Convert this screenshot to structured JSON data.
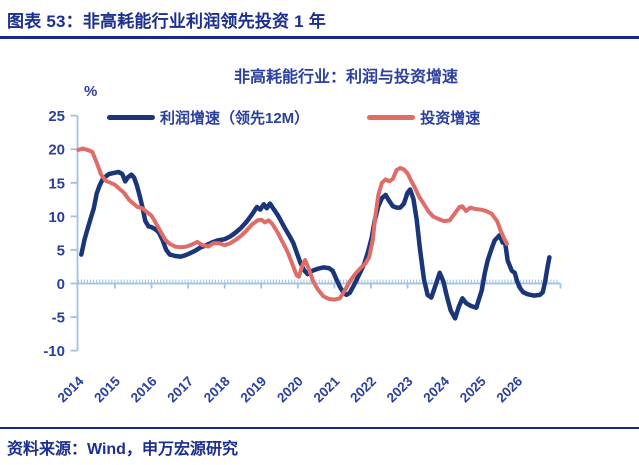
{
  "header": {
    "title": "图表 53：非高耗能行业利润领先投资 1 年"
  },
  "footer": {
    "source": "资料来源：Wind，申万宏源研究"
  },
  "colors": {
    "header_navy": "#1b2f8e",
    "chart_text_blue": "#2b3f9e",
    "axis_light_blue": "#9dc3e6",
    "profit_line": "#1a3578",
    "investment_line": "#e06c68"
  },
  "chart_data": {
    "type": "line",
    "title": "非高耗能行业：利润与投资增速",
    "unit_label": "%",
    "ylim": [
      -10,
      25
    ],
    "yticks": [
      25,
      20,
      15,
      10,
      5,
      0,
      -5,
      -10
    ],
    "xticks": [
      2014,
      2015,
      2016,
      2017,
      2018,
      2019,
      2020,
      2021,
      2022,
      2023,
      2024,
      2025,
      2026
    ],
    "x_range": [
      2014,
      2027.2
    ],
    "grid": "off",
    "legend_position": "top",
    "axis_crosses_at": 0,
    "series": [
      {
        "key": "profit-growth-lead-12m",
        "name": "利润增速（领先12M）",
        "color": "#1a3578",
        "width": 4.5,
        "points": [
          [
            2014.08,
            4.3
          ],
          [
            2014.17,
            6.6
          ],
          [
            2014.25,
            8.1
          ],
          [
            2014.33,
            9.6
          ],
          [
            2014.42,
            11.2
          ],
          [
            2014.5,
            13.4
          ],
          [
            2014.58,
            14.6
          ],
          [
            2014.67,
            15.6
          ],
          [
            2014.83,
            16.3
          ],
          [
            2015.0,
            16.5
          ],
          [
            2015.1,
            16.6
          ],
          [
            2015.2,
            16.3
          ],
          [
            2015.28,
            15.2
          ],
          [
            2015.35,
            15.8
          ],
          [
            2015.45,
            16.2
          ],
          [
            2015.52,
            15.8
          ],
          [
            2015.6,
            14.6
          ],
          [
            2015.68,
            13.0
          ],
          [
            2015.75,
            11.4
          ],
          [
            2015.83,
            9.3
          ],
          [
            2015.92,
            8.5
          ],
          [
            2016.0,
            8.4
          ],
          [
            2016.1,
            8.1
          ],
          [
            2016.2,
            7.6
          ],
          [
            2016.3,
            6.5
          ],
          [
            2016.4,
            5.0
          ],
          [
            2016.5,
            4.3
          ],
          [
            2016.65,
            4.1
          ],
          [
            2016.8,
            4.0
          ],
          [
            2016.92,
            4.2
          ],
          [
            2017.05,
            4.5
          ],
          [
            2017.2,
            4.9
          ],
          [
            2017.35,
            5.4
          ],
          [
            2017.5,
            5.7
          ],
          [
            2017.65,
            6.1
          ],
          [
            2017.8,
            6.4
          ],
          [
            2018.0,
            6.6
          ],
          [
            2018.15,
            7.0
          ],
          [
            2018.3,
            7.6
          ],
          [
            2018.45,
            8.3
          ],
          [
            2018.6,
            9.2
          ],
          [
            2018.75,
            10.3
          ],
          [
            2018.88,
            11.4
          ],
          [
            2018.97,
            11.0
          ],
          [
            2019.07,
            11.8
          ],
          [
            2019.15,
            11.2
          ],
          [
            2019.24,
            11.9
          ],
          [
            2019.35,
            11.0
          ],
          [
            2019.45,
            10.2
          ],
          [
            2019.55,
            9.2
          ],
          [
            2019.65,
            8.2
          ],
          [
            2019.78,
            7.0
          ],
          [
            2019.88,
            6.0
          ],
          [
            2019.97,
            4.6
          ],
          [
            2020.07,
            3.1
          ],
          [
            2020.17,
            2.0
          ],
          [
            2020.27,
            1.4
          ],
          [
            2020.4,
            1.9
          ],
          [
            2020.55,
            2.2
          ],
          [
            2020.7,
            2.4
          ],
          [
            2020.85,
            2.3
          ],
          [
            2020.95,
            1.9
          ],
          [
            2021.05,
            0.7
          ],
          [
            2021.15,
            -0.5
          ],
          [
            2021.25,
            -1.4
          ],
          [
            2021.33,
            -1.7
          ],
          [
            2021.42,
            -1.4
          ],
          [
            2021.52,
            -0.4
          ],
          [
            2021.62,
            0.7
          ],
          [
            2021.72,
            1.8
          ],
          [
            2021.82,
            3.0
          ],
          [
            2021.92,
            4.7
          ],
          [
            2022.02,
            6.8
          ],
          [
            2022.1,
            9.3
          ],
          [
            2022.2,
            11.5
          ],
          [
            2022.3,
            12.7
          ],
          [
            2022.4,
            13.2
          ],
          [
            2022.5,
            12.3
          ],
          [
            2022.6,
            11.5
          ],
          [
            2022.7,
            11.3
          ],
          [
            2022.8,
            11.3
          ],
          [
            2022.9,
            11.9
          ],
          [
            2023.0,
            13.5
          ],
          [
            2023.07,
            14.0
          ],
          [
            2023.16,
            12.6
          ],
          [
            2023.25,
            9.5
          ],
          [
            2023.34,
            5.1
          ],
          [
            2023.45,
            0.6
          ],
          [
            2023.55,
            -1.7
          ],
          [
            2023.65,
            -2.1
          ],
          [
            2023.75,
            -0.5
          ],
          [
            2023.88,
            1.6
          ],
          [
            2023.98,
            0.3
          ],
          [
            2024.08,
            -2.0
          ],
          [
            2024.18,
            -4.0
          ],
          [
            2024.3,
            -5.2
          ],
          [
            2024.4,
            -3.5
          ],
          [
            2024.5,
            -2.2
          ],
          [
            2024.6,
            -2.9
          ],
          [
            2024.72,
            -3.3
          ],
          [
            2024.88,
            -3.6
          ],
          [
            2025.03,
            -1.0
          ],
          [
            2025.11,
            1.5
          ],
          [
            2025.19,
            3.4
          ],
          [
            2025.3,
            5.2
          ],
          [
            2025.38,
            6.4
          ],
          [
            2025.52,
            7.2
          ],
          [
            2025.6,
            6.1
          ],
          [
            2025.66,
            6.4
          ],
          [
            2025.74,
            3.4
          ],
          [
            2025.85,
            1.9
          ],
          [
            2025.93,
            1.6
          ],
          [
            2026.0,
            0.3
          ],
          [
            2026.08,
            -0.7
          ],
          [
            2026.16,
            -1.3
          ],
          [
            2026.28,
            -1.6
          ],
          [
            2026.45,
            -1.8
          ],
          [
            2026.62,
            -1.7
          ],
          [
            2026.7,
            -1.3
          ],
          [
            2026.76,
            0.2
          ],
          [
            2026.83,
            2.5
          ],
          [
            2026.88,
            3.9
          ]
        ]
      },
      {
        "key": "investment-growth",
        "name": "投资增速",
        "color": "#e06c68",
        "width": 4,
        "points": [
          [
            2014.0,
            19.9
          ],
          [
            2014.12,
            20.1
          ],
          [
            2014.25,
            19.9
          ],
          [
            2014.38,
            19.6
          ],
          [
            2014.5,
            18.0
          ],
          [
            2014.62,
            16.2
          ],
          [
            2014.75,
            15.3
          ],
          [
            2014.88,
            15.0
          ],
          [
            2015.0,
            14.7
          ],
          [
            2015.12,
            14.1
          ],
          [
            2015.25,
            13.5
          ],
          [
            2015.38,
            12.5
          ],
          [
            2015.5,
            11.9
          ],
          [
            2015.62,
            11.4
          ],
          [
            2015.75,
            11.2
          ],
          [
            2015.88,
            10.6
          ],
          [
            2016.0,
            10.1
          ],
          [
            2016.12,
            9.0
          ],
          [
            2016.25,
            7.7
          ],
          [
            2016.38,
            6.5
          ],
          [
            2016.5,
            5.9
          ],
          [
            2016.65,
            5.5
          ],
          [
            2016.8,
            5.4
          ],
          [
            2016.95,
            5.5
          ],
          [
            2017.1,
            5.8
          ],
          [
            2017.25,
            6.2
          ],
          [
            2017.4,
            5.7
          ],
          [
            2017.55,
            5.5
          ],
          [
            2017.7,
            6.0
          ],
          [
            2017.85,
            6.0
          ],
          [
            2018.0,
            5.7
          ],
          [
            2018.15,
            6.0
          ],
          [
            2018.3,
            6.5
          ],
          [
            2018.45,
            7.1
          ],
          [
            2018.6,
            7.9
          ],
          [
            2018.75,
            8.8
          ],
          [
            2018.9,
            9.4
          ],
          [
            2019.0,
            9.5
          ],
          [
            2019.1,
            9.1
          ],
          [
            2019.2,
            9.4
          ],
          [
            2019.3,
            8.9
          ],
          [
            2019.45,
            7.6
          ],
          [
            2019.55,
            6.5
          ],
          [
            2019.65,
            5.5
          ],
          [
            2019.75,
            4.3
          ],
          [
            2019.85,
            2.9
          ],
          [
            2019.97,
            1.2
          ],
          [
            2020.03,
            1.0
          ],
          [
            2020.12,
            2.6
          ],
          [
            2020.2,
            3.5
          ],
          [
            2020.3,
            2.2
          ],
          [
            2020.42,
            0.3
          ],
          [
            2020.55,
            -0.9
          ],
          [
            2020.7,
            -1.9
          ],
          [
            2020.85,
            -2.3
          ],
          [
            2021.0,
            -2.4
          ],
          [
            2021.15,
            -2.2
          ],
          [
            2021.3,
            -0.9
          ],
          [
            2021.42,
            0.3
          ],
          [
            2021.55,
            1.3
          ],
          [
            2021.7,
            2.2
          ],
          [
            2021.85,
            3.0
          ],
          [
            2021.95,
            3.9
          ],
          [
            2022.05,
            6.5
          ],
          [
            2022.12,
            10.0
          ],
          [
            2022.2,
            13.2
          ],
          [
            2022.3,
            15.0
          ],
          [
            2022.4,
            15.5
          ],
          [
            2022.5,
            15.2
          ],
          [
            2022.6,
            15.6
          ],
          [
            2022.7,
            16.9
          ],
          [
            2022.8,
            17.2
          ],
          [
            2022.9,
            17.0
          ],
          [
            2023.0,
            16.4
          ],
          [
            2023.1,
            15.3
          ],
          [
            2023.2,
            14.3
          ],
          [
            2023.32,
            12.9
          ],
          [
            2023.45,
            11.8
          ],
          [
            2023.58,
            10.7
          ],
          [
            2023.7,
            10.0
          ],
          [
            2023.85,
            9.6
          ],
          [
            2024.0,
            9.3
          ],
          [
            2024.15,
            9.4
          ],
          [
            2024.3,
            10.5
          ],
          [
            2024.42,
            11.4
          ],
          [
            2024.5,
            11.5
          ],
          [
            2024.6,
            10.8
          ],
          [
            2024.72,
            11.3
          ],
          [
            2024.85,
            11.1
          ],
          [
            2025.0,
            11.0
          ],
          [
            2025.15,
            10.8
          ],
          [
            2025.3,
            10.4
          ],
          [
            2025.45,
            9.3
          ],
          [
            2025.55,
            7.8
          ],
          [
            2025.65,
            6.6
          ],
          [
            2025.72,
            5.9
          ]
        ]
      }
    ]
  }
}
